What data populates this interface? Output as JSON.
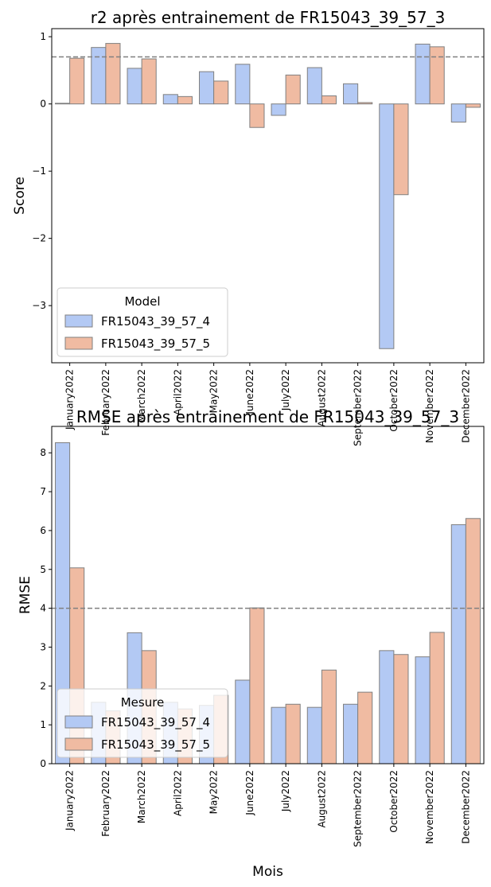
{
  "colors": {
    "series_1": "#b3c9f4",
    "series_2": "#f0bba2",
    "bar_edge": "#808080",
    "reference_line": "#808080"
  },
  "chart_data": [
    {
      "type": "bar",
      "title": "r2 après entrainement de FR15043_39_57_3",
      "xlabel": "",
      "ylabel": "Score",
      "categories": [
        "January2022",
        "February2022",
        "March2022",
        "April2022",
        "May2022",
        "June2022",
        "July2022",
        "August2022",
        "September2022",
        "October2022",
        "November2022",
        "December2022"
      ],
      "ylim": [
        -3.85,
        1.12
      ],
      "yticks": [
        1,
        0,
        -1,
        -2,
        -3
      ],
      "ytick_labels": [
        "1",
        "0",
        "−1",
        "−2",
        "−3"
      ],
      "reference_line": 0.7,
      "legend": {
        "title": "Model",
        "position": "lower-left"
      },
      "series": [
        {
          "name": "FR15043_39_57_4",
          "values": [
            0.01,
            0.84,
            0.53,
            0.14,
            0.48,
            0.59,
            -0.17,
            0.54,
            0.3,
            -3.64,
            0.89,
            -0.27
          ]
        },
        {
          "name": "FR15043_39_57_5",
          "values": [
            0.68,
            0.9,
            0.67,
            0.11,
            0.34,
            -0.35,
            0.43,
            0.12,
            0.02,
            -1.35,
            0.85,
            -0.05
          ]
        }
      ]
    },
    {
      "type": "bar",
      "title": "RMSE après entrainement de FR15043_39_57_3",
      "xlabel": "Mois",
      "ylabel": "RMSE",
      "categories": [
        "January2022",
        "February2022",
        "March2022",
        "April2022",
        "May2022",
        "June2022",
        "July2022",
        "August2022",
        "September2022",
        "October2022",
        "November2022",
        "December2022"
      ],
      "ylim": [
        0,
        8.68
      ],
      "yticks": [
        0,
        1,
        2,
        3,
        4,
        5,
        6,
        7,
        8
      ],
      "ytick_labels": [
        "0",
        "1",
        "2",
        "3",
        "4",
        "5",
        "6",
        "7",
        "8"
      ],
      "reference_line": 4,
      "legend": {
        "title": "Mesure",
        "position": "lower-left"
      },
      "series": [
        {
          "name": "FR15043_39_57_4",
          "values": [
            8.26,
            1.58,
            3.37,
            1.58,
            1.5,
            2.15,
            1.45,
            1.45,
            1.53,
            2.91,
            2.75,
            6.15
          ]
        },
        {
          "name": "FR15043_39_57_5",
          "values": [
            5.04,
            1.36,
            2.91,
            1.41,
            1.76,
            4.01,
            1.53,
            2.41,
            1.84,
            2.81,
            3.38,
            6.31
          ]
        }
      ]
    }
  ]
}
